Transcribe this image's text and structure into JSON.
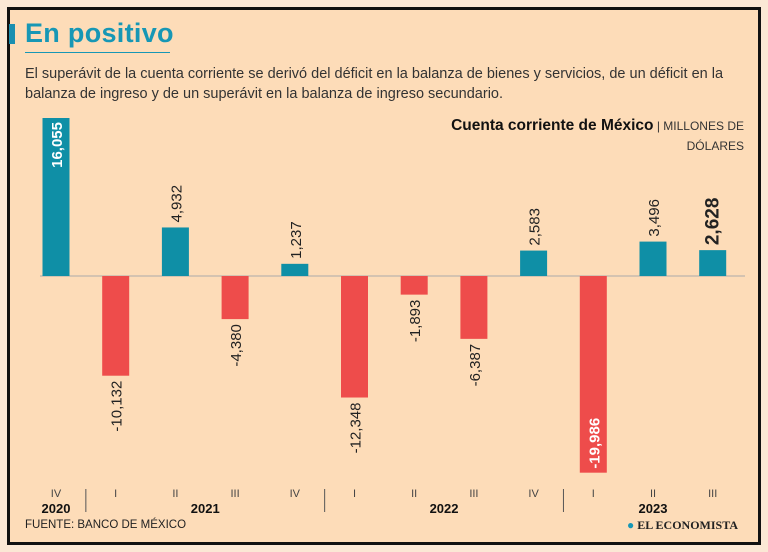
{
  "header": {
    "title": "En positivo",
    "subtitle": "El superávit de la cuenta corriente se derivó del déficit en la balanza de bienes y servicios, de un déficit en la balanza de ingreso y de un superávit en la balanza de ingreso secundario."
  },
  "footer": {
    "source": "FUENTE: BANCO DE MÉXICO",
    "brand": "EL ECONOMISTA"
  },
  "colors": {
    "positive": "#0f8fa6",
    "negative": "#ee4c4b"
  },
  "chart_data": {
    "type": "bar",
    "title": "Cuenta corriente de México",
    "unit": "MILLONES DE DÓLARES",
    "categories": [
      "IV",
      "I",
      "II",
      "III",
      "IV",
      "I",
      "II",
      "III",
      "IV",
      "I",
      "II",
      "III"
    ],
    "years": [
      {
        "label": "2020",
        "from": 0,
        "to": 0
      },
      {
        "label": "2021",
        "from": 1,
        "to": 4
      },
      {
        "label": "2022",
        "from": 5,
        "to": 8
      },
      {
        "label": "2023",
        "from": 9,
        "to": 11
      }
    ],
    "values": [
      16055,
      -10132,
      4932,
      -4380,
      1237,
      -12348,
      -1893,
      -6387,
      2583,
      -19986,
      3496,
      2628
    ],
    "labels": [
      "16,055",
      "-10,132",
      "4,932",
      "-4,380",
      "1,237",
      "-12,348",
      "-1,893",
      "-6,387",
      "2,583",
      "-19,986",
      "3,496",
      "2,628"
    ],
    "highlight_index": 11,
    "ylim": [
      -19986,
      16055
    ]
  }
}
